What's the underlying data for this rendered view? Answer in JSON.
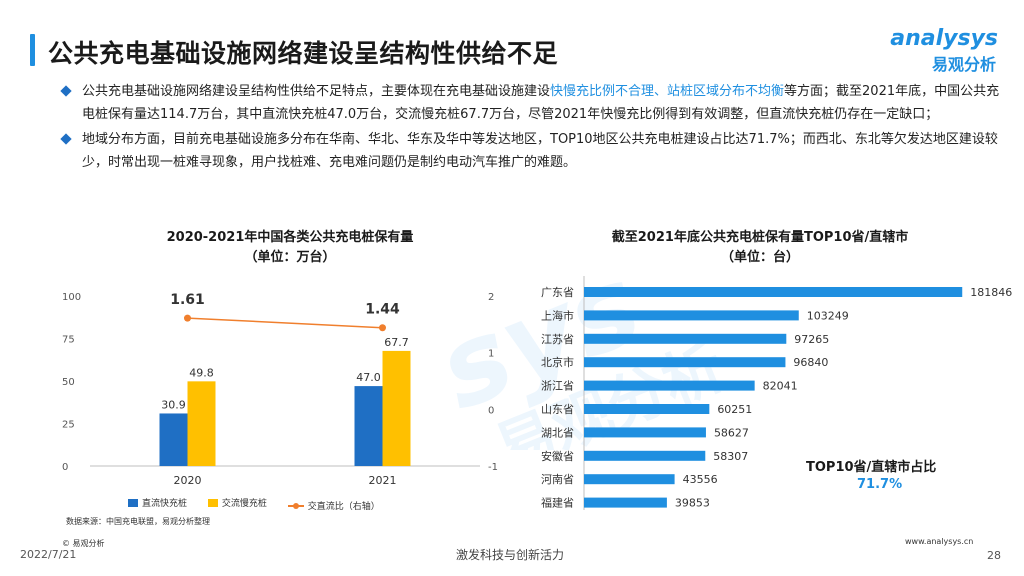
{
  "header": {
    "title": "公共充电基础设施网络建设呈结构性供给不足",
    "logo_text": "analysys",
    "logo_sub": "易观分析"
  },
  "bullets": [
    {
      "pre": "公共充电基础设施网络建设呈结构性供给不足特点，主要体现在充电基础设施建设",
      "highlight": "快慢充比例不合理、站桩区域分布不均衡",
      "post": "等方面；截至2021年底，中国公共充电桩保有量达114.7万台，其中直流快充桩47.0万台，交流慢充桩67.7万台，尽管2021年快慢充比例得到有效调整，但直流快充桩仍存在一定缺口；"
    },
    {
      "pre": "地域分布方面，目前充电基础设施多分布在华南、华北、华东及华中等发达地区，TOP10地区公共充电桩建设占比达71.7%；而西北、东北等欠发达地区建设较少，时常出现一桩难寻现象，用户找桩难、充电难问题仍是制约电动汽车推广的难题。",
      "highlight": "",
      "post": ""
    }
  ],
  "chart_data": [
    {
      "type": "bar",
      "title": "2020-2021年中国各类公共充电桩保有量",
      "subtitle": "（单位：万台）",
      "categories": [
        "2020",
        "2021"
      ],
      "series": [
        {
          "name": "直流快充桩",
          "values": [
            30.9,
            47.0
          ],
          "color": "#1f6fc4"
        },
        {
          "name": "交流慢充桩",
          "values": [
            49.8,
            67.7
          ],
          "color": "#ffc000"
        }
      ],
      "line_series": {
        "name": "交直流比（右轴）",
        "values": [
          1.61,
          1.44
        ],
        "color": "#f07f2d"
      },
      "ylim": [
        0,
        100
      ],
      "yticks": [
        0,
        25,
        50,
        75,
        100
      ],
      "y2lim": [
        -1,
        2
      ],
      "y2ticks": [
        -1,
        0,
        1,
        2
      ],
      "grid": false,
      "legend": "bottom"
    },
    {
      "type": "bar",
      "orientation": "horizontal",
      "title": "截至2021年底公共充电桩保有量TOP10省/直辖市",
      "subtitle": "（单位：台）",
      "categories": [
        "广东省",
        "上海市",
        "江苏省",
        "北京市",
        "浙江省",
        "山东省",
        "湖北省",
        "安徽省",
        "河南省",
        "福建省"
      ],
      "values": [
        181846,
        103249,
        97265,
        96840,
        82041,
        60251,
        58627,
        58307,
        43556,
        39853
      ],
      "color": "#1f8fe0",
      "xlim": [
        0,
        200000
      ]
    }
  ],
  "share": {
    "label": "TOP10省/直辖市占比",
    "value": "71.7%"
  },
  "footer": {
    "source": "数据来源：中国充电联盟，易观分析整理",
    "copyright": "© 易观分析",
    "date": "2022/7/21",
    "slogan": "激发科技与创新活力",
    "site": "www.analysys.cn",
    "page": "28"
  },
  "colors": {
    "accent": "#1f8fe0",
    "dark_blue": "#1f6fc4",
    "yellow": "#ffc000",
    "orange": "#f07f2d"
  }
}
